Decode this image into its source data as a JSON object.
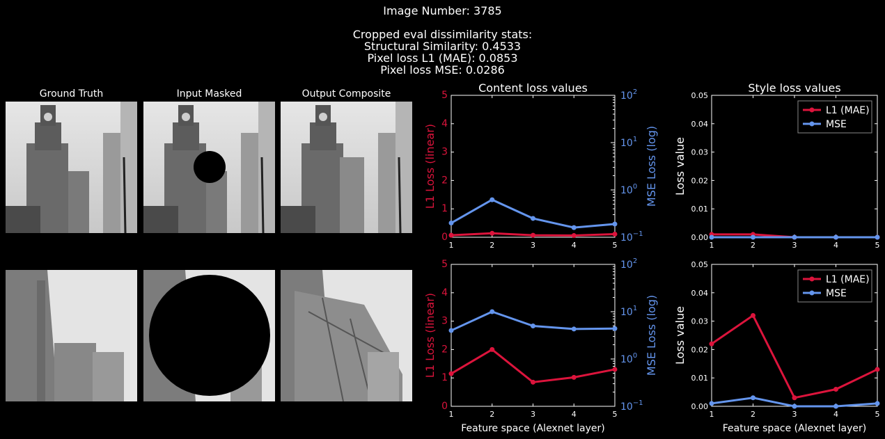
{
  "header": {
    "image_number": "Image Number: 3785",
    "stats_title": "Cropped eval dissimilarity stats:",
    "ssim": "Structural Similarity: 0.4533",
    "l1": "Pixel loss L1 (MAE): 0.0853",
    "mse": "Pixel loss MSE: 0.0286"
  },
  "images": {
    "titles": [
      "Ground Truth",
      "Input Masked",
      "Output Composite"
    ]
  },
  "colors": {
    "l1": "#dc143c",
    "mse": "#6495ed",
    "axis": "#ffffff",
    "background": "#000000"
  },
  "chart_data": [
    {
      "id": "content-top",
      "type": "line",
      "title": "Content loss values",
      "xlabel": "",
      "ylabel": "L1 Loss (linear)",
      "y2label": "MSE Loss (log)",
      "x": [
        1,
        2,
        3,
        4,
        5
      ],
      "xticks": [
        "1",
        "2",
        "3",
        "4",
        "5"
      ],
      "ylim": [
        0,
        5
      ],
      "yticks": [
        "0",
        "1",
        "2",
        "3",
        "4",
        "5"
      ],
      "y2lim": [
        0.1,
        100
      ],
      "y2scale": "log",
      "series": [
        {
          "axis": "left",
          "color": "#dc143c",
          "values": [
            0.07,
            0.14,
            0.07,
            0.06,
            0.11
          ]
        },
        {
          "axis": "right",
          "color": "#6495ed",
          "values": [
            0.2,
            0.62,
            0.25,
            0.16,
            0.19
          ]
        }
      ]
    },
    {
      "id": "style-top",
      "type": "line",
      "title": "Style loss values",
      "xlabel": "",
      "ylabel": "Loss value",
      "x": [
        1,
        2,
        3,
        4,
        5
      ],
      "xticks": [
        "1",
        "2",
        "3",
        "4",
        "5"
      ],
      "ylim": [
        0,
        0.05
      ],
      "yticks": [
        "0.00",
        "0.01",
        "0.02",
        "0.03",
        "0.04",
        "0.05"
      ],
      "legend": [
        "L1 (MAE)",
        "MSE"
      ],
      "legend_position": "top-right",
      "series": [
        {
          "name": "L1 (MAE)",
          "color": "#dc143c",
          "values": [
            0.001,
            0.001,
            0.0,
            0.0,
            0.0
          ]
        },
        {
          "name": "MSE",
          "color": "#6495ed",
          "values": [
            0.0,
            0.0,
            0.0,
            0.0,
            0.0
          ]
        }
      ]
    },
    {
      "id": "content-bottom",
      "type": "line",
      "title": "",
      "xlabel": "Feature space (Alexnet layer)",
      "ylabel": "L1 Loss (linear)",
      "y2label": "MSE Loss (log)",
      "x": [
        1,
        2,
        3,
        4,
        5
      ],
      "xticks": [
        "1",
        "2",
        "3",
        "4",
        "5"
      ],
      "ylim": [
        0,
        5
      ],
      "yticks": [
        "0",
        "1",
        "2",
        "3",
        "4",
        "5"
      ],
      "y2lim": [
        0.1,
        100
      ],
      "y2scale": "log",
      "series": [
        {
          "axis": "left",
          "color": "#dc143c",
          "values": [
            1.15,
            2.0,
            0.85,
            1.02,
            1.3
          ]
        },
        {
          "axis": "right",
          "color": "#6495ed",
          "values": [
            4.0,
            10.0,
            5.0,
            4.3,
            4.4
          ]
        }
      ]
    },
    {
      "id": "style-bottom",
      "type": "line",
      "title": "",
      "xlabel": "Feature space (Alexnet layer)",
      "ylabel": "Loss value",
      "x": [
        1,
        2,
        3,
        4,
        5
      ],
      "xticks": [
        "1",
        "2",
        "3",
        "4",
        "5"
      ],
      "ylim": [
        0,
        0.05
      ],
      "yticks": [
        "0.00",
        "0.01",
        "0.02",
        "0.03",
        "0.04",
        "0.05"
      ],
      "legend": [
        "L1 (MAE)",
        "MSE"
      ],
      "legend_position": "top-right",
      "series": [
        {
          "name": "L1 (MAE)",
          "color": "#dc143c",
          "values": [
            0.022,
            0.032,
            0.003,
            0.006,
            0.013
          ]
        },
        {
          "name": "MSE",
          "color": "#6495ed",
          "values": [
            0.001,
            0.003,
            0.0,
            0.0,
            0.001
          ]
        }
      ]
    }
  ]
}
